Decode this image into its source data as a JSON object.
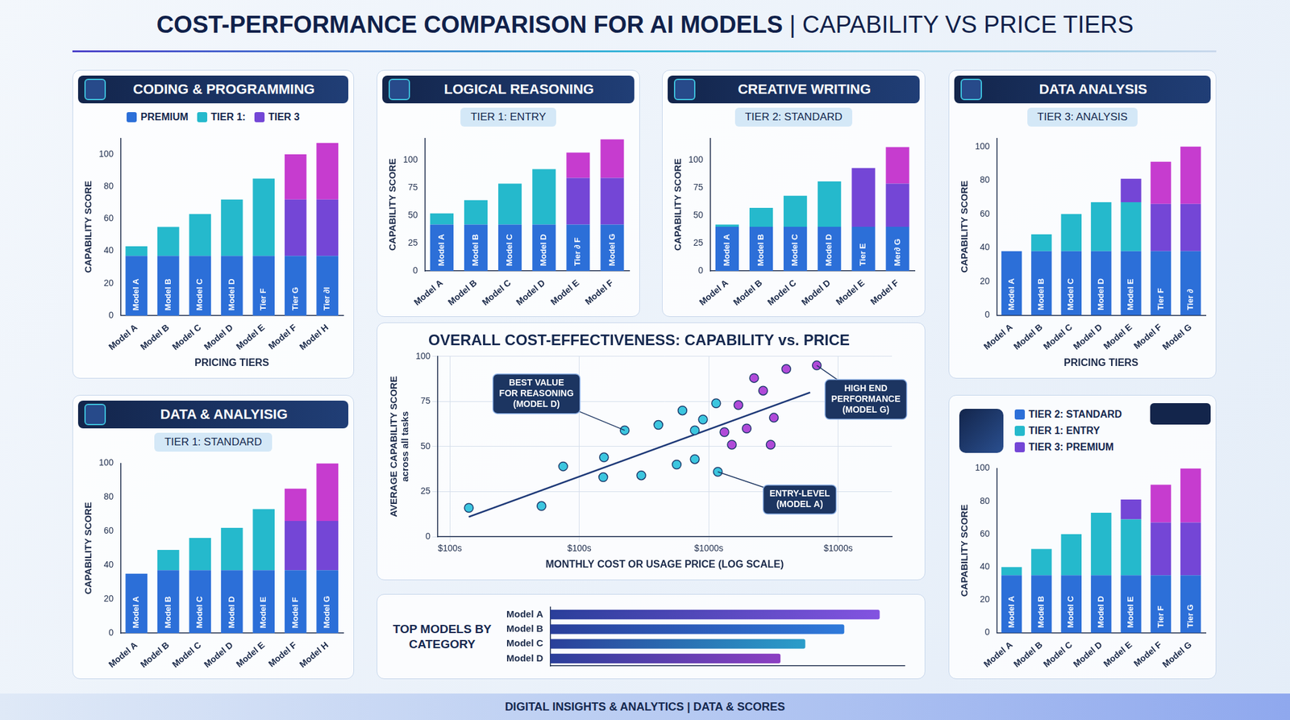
{
  "page": {
    "title": "COST-PERFORMANCE COMPARISON FOR AI MODELS | CAPABILITY VS PRICE TIERS",
    "footer": "DIGITAL INSIGHTS & ANALYTICS | DATA & SCORES"
  },
  "chart_data": [
    {
      "type": "bar",
      "title": "CODING & PROGRAMMING",
      "stacked": true,
      "grid": false,
      "legend": "top",
      "categories": [
        "Model A",
        "Model B",
        "Model C",
        "Model D",
        "Model E",
        "Model F",
        "Model H"
      ],
      "series": [
        {
          "name": "PREMIUM",
          "color": "#2c6fd8",
          "values": [
            37,
            37,
            37,
            37,
            37,
            37,
            37
          ]
        },
        {
          "name": "TIER 1:",
          "color": "#25b9cc",
          "values": [
            6,
            18,
            26,
            35,
            48,
            null,
            null
          ]
        },
        {
          "name": "TIER 3",
          "color": "#7446d6",
          "values": [
            null,
            null,
            null,
            null,
            null,
            35,
            35
          ]
        },
        {
          "color": "#c63ccf",
          "values": [
            null,
            null,
            null,
            null,
            null,
            28,
            35
          ]
        }
      ],
      "inner_labels": [
        "Model A",
        "Model B",
        "Model C",
        "Model D",
        "Tier F",
        "Tier G",
        "Tier ∂l"
      ],
      "xlabel": "PRICING TIERS",
      "ylabel": "CAPABILITY SCORE",
      "ylim": [
        0,
        110
      ],
      "yticks": [
        0,
        20,
        40,
        60,
        80,
        100
      ]
    },
    {
      "type": "bar",
      "title": "LOGICAL REASONING",
      "subtitle": "TIER 1: ENTRY",
      "stacked": true,
      "grid": false,
      "categories": [
        "Model A",
        "Model B",
        "Model C",
        "Model D",
        "Model E",
        "Model F"
      ],
      "series": [
        {
          "color": "#2c6fd8",
          "values": [
            42,
            42,
            42,
            42,
            42,
            42
          ]
        },
        {
          "color": "#25b9cc",
          "values": [
            10,
            22,
            37,
            50,
            null,
            null
          ]
        },
        {
          "color": "#7446d6",
          "values": [
            null,
            null,
            null,
            null,
            42,
            42
          ]
        },
        {
          "color": "#c63ccf",
          "values": [
            null,
            null,
            null,
            null,
            23,
            35
          ]
        }
      ],
      "inner_labels": [
        "Model A",
        "Model B",
        "Model C",
        "Model D",
        "Tier ∂ F",
        "Model G"
      ],
      "ylabel": "CAPABILITY SCORE",
      "ylim": [
        0,
        120
      ],
      "yticks": [
        0,
        25,
        50,
        75,
        100
      ]
    },
    {
      "type": "bar",
      "title": "CREATIVE WRITING",
      "subtitle": "TIER 2: STANDARD",
      "stacked": true,
      "grid": false,
      "categories": [
        "Model A",
        "Model B",
        "Model C",
        "Model D",
        "Model E",
        "Model F"
      ],
      "series": [
        {
          "color": "#2c6fd8",
          "values": [
            40,
            40,
            40,
            40,
            40,
            40
          ]
        },
        {
          "color": "#25b9cc",
          "values": [
            2,
            17,
            28,
            41,
            null,
            null
          ]
        },
        {
          "color": "#7446d6",
          "values": [
            null,
            null,
            null,
            null,
            53,
            39
          ]
        },
        {
          "color": "#c63ccf",
          "values": [
            null,
            null,
            null,
            null,
            null,
            33
          ]
        }
      ],
      "inner_labels": [
        "Model A",
        "Model B",
        "Model C",
        "Model D",
        "Tier E",
        "Mer∂ G"
      ],
      "ylabel": "CAPABILITY SCORE",
      "ylim": [
        0,
        120
      ],
      "yticks": [
        0,
        25,
        50,
        75,
        100
      ]
    },
    {
      "type": "bar",
      "title": "DATA ANALYSIS",
      "subtitle": "TIER 3: ANALYSIS",
      "stacked": true,
      "grid": false,
      "categories": [
        "Model A",
        "Model B",
        "Model C",
        "Model D",
        "Model E",
        "Model F",
        "Model G"
      ],
      "series": [
        {
          "color": "#2c6fd8",
          "values": [
            38,
            38,
            38,
            38,
            38,
            38,
            38
          ]
        },
        {
          "color": "#25b9cc",
          "values": [
            null,
            10,
            22,
            29,
            29,
            null,
            null
          ]
        },
        {
          "color": "#7446d6",
          "values": [
            null,
            null,
            null,
            null,
            14,
            28,
            28
          ]
        },
        {
          "color": "#c63ccf",
          "values": [
            null,
            null,
            null,
            null,
            null,
            25,
            34
          ]
        }
      ],
      "inner_labels": [
        "Model A",
        "Model B",
        "Model C",
        "Model D",
        "Model E",
        "Tier F",
        "Tier ∂"
      ],
      "xlabel": "PRICING TIERS",
      "ylabel": "CAPABILITY SCORE",
      "ylim": [
        0,
        105
      ],
      "yticks": [
        0,
        20,
        40,
        60,
        80,
        100
      ]
    },
    {
      "type": "bar",
      "title": "DATA & ANALYISIG",
      "subtitle": "TIER 1: STANDARD",
      "stacked": true,
      "grid": false,
      "categories": [
        "Model A",
        "Model B",
        "Model C",
        "Model D",
        "Model E",
        "Model F",
        "Model H"
      ],
      "series": [
        {
          "color": "#2c6fd8",
          "values": [
            35,
            37,
            37,
            37,
            37,
            37,
            37
          ]
        },
        {
          "color": "#25b9cc",
          "values": [
            null,
            12,
            19,
            25,
            36,
            null,
            null
          ]
        },
        {
          "color": "#7446d6",
          "values": [
            null,
            null,
            null,
            null,
            null,
            29,
            29
          ]
        },
        {
          "color": "#c63ccf",
          "values": [
            null,
            null,
            null,
            null,
            null,
            19,
            34
          ]
        }
      ],
      "inner_labels": [
        "Model A",
        "Model B",
        "Model C",
        "Model D",
        "Model E",
        "Model F",
        "Model G"
      ],
      "ylabel": "CAPABILITY SCORE",
      "ylim": [
        0,
        100
      ],
      "yticks": [
        0,
        20,
        40,
        60,
        80,
        100
      ]
    },
    {
      "type": "scatter",
      "title": "OVERALL COST-EFFECTIVENESS: CAPABILITY vs. PRICE",
      "log": "x",
      "grid": true,
      "xlabel": "MONTHLY COST OR USAGE PRICE (LOG SCALE)",
      "ylabel": [
        "AVERAGE CAPABILITY SCORE",
        "across all tasks"
      ],
      "xlim": [
        8,
        26000
      ],
      "xticks": [
        {
          "value": 10,
          "label": "$100s"
        },
        {
          "value": 100,
          "label": "$100s"
        },
        {
          "value": 1000,
          "label": "$1000s"
        },
        {
          "value": 10000,
          "label": "$1000s"
        }
      ],
      "ylim": [
        0,
        100
      ],
      "yticks": [
        0,
        25,
        50,
        75,
        100
      ],
      "series": [
        {
          "color": "#3cc6df",
          "marker": "circle",
          "x": [
            14,
            51,
            75,
            155,
            153,
            301,
            224,
            408,
            565,
            626,
            780,
            780,
            902,
            1140,
            1175
          ],
          "values": [
            16,
            17,
            39,
            44,
            33,
            34,
            59,
            62,
            40,
            70,
            59,
            43,
            65,
            74,
            36
          ]
        },
        {
          "color": "#b04ad8",
          "marker": "circle",
          "x": [
            1321,
            1508,
            1694,
            1963,
            2239,
            2630,
            3007,
            3184,
            3970,
            6830
          ],
          "values": [
            58,
            51,
            73,
            60,
            88,
            81,
            51,
            66,
            93,
            95
          ]
        },
        {
          "type": "line",
          "color": "#1f3a78",
          "line_style": "solid",
          "x": [
            14,
            6070
          ],
          "values": [
            11,
            80
          ]
        }
      ],
      "annotations": [
        {
          "text": "BEST VALUE\nFOR REASONING\n(MODEL D)",
          "x": 224,
          "y": 59
        },
        {
          "text": "HIGH END\nPERFORMANCE\n(MODEL G)",
          "x": 6830,
          "y": 95
        },
        {
          "text": "ENTRY-LEVEL\n(MODEL A)",
          "x": 1175,
          "y": 36
        }
      ]
    },
    {
      "type": "bar",
      "title": "TOP MODELS BY CATEGORY",
      "orientation": "horizontal",
      "tick_labels": "y",
      "grid": false,
      "categories": [
        "Model A",
        "Model B",
        "Model C",
        "Model D"
      ],
      "values": [
        93,
        83,
        72,
        65
      ],
      "colors": [
        "#8a55e6",
        "#2f86e8",
        "#2bc2dc",
        "#c23fd8"
      ],
      "xlim": [
        0,
        100
      ]
    },
    {
      "type": "bar",
      "stacked": true,
      "grid": false,
      "legend": "top",
      "categories": [
        "Model A",
        "Model B",
        "Model C",
        "Model D",
        "Model E",
        "Model F",
        "Model G"
      ],
      "series": [
        {
          "name": "TIER 2: STANDARD",
          "color": "#2c6fd8",
          "values": [
            35,
            35,
            35,
            35,
            35,
            35,
            35
          ]
        },
        {
          "name": "TIER 1: ENTRY",
          "color": "#25b9cc",
          "values": [
            5,
            16,
            25,
            38,
            34,
            null,
            null
          ]
        },
        {
          "name": "TIER 3: PREMIUM",
          "color": "#7446d6",
          "values": [
            null,
            null,
            null,
            null,
            12,
            32,
            32
          ]
        },
        {
          "color": "#c63ccf",
          "values": [
            null,
            null,
            null,
            null,
            null,
            23,
            33
          ]
        }
      ],
      "inner_labels": [
        "Model A",
        "Model B",
        "Model C",
        "Model D",
        "Model E",
        "Tier F",
        "Tier G"
      ],
      "ylabel": "CAPABILITY SCORE",
      "ylim": [
        0,
        100
      ],
      "yticks": [
        0,
        20,
        40,
        60,
        80,
        100
      ]
    }
  ]
}
